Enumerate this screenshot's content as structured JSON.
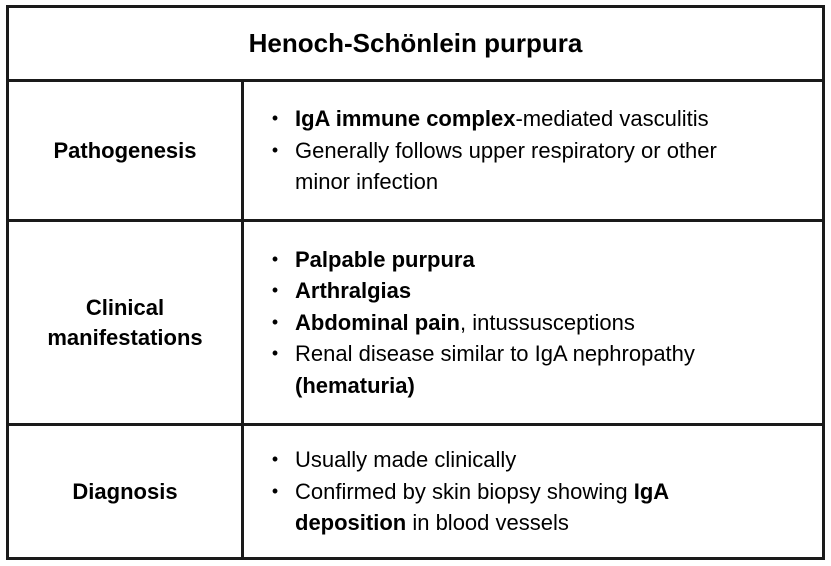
{
  "title": "Henoch-Schönlein purpura",
  "rows": [
    {
      "label": "Pathogenesis",
      "items": [
        {
          "segments": [
            {
              "text": "IgA immune complex",
              "bold": true
            },
            {
              "text": "-mediated vasculitis",
              "bold": false
            }
          ]
        },
        {
          "segments": [
            {
              "text": "Generally follows upper respiratory or other",
              "bold": false
            },
            {
              "br": true
            },
            {
              "text": "minor infection",
              "bold": false
            }
          ]
        }
      ]
    },
    {
      "label": "Clinical manifestations",
      "items": [
        {
          "segments": [
            {
              "text": "Palpable purpura",
              "bold": true
            }
          ]
        },
        {
          "segments": [
            {
              "text": "Arthralgias",
              "bold": true
            }
          ]
        },
        {
          "segments": [
            {
              "text": "Abdominal pain",
              "bold": true
            },
            {
              "text": ", intussusceptions",
              "bold": false
            }
          ]
        },
        {
          "segments": [
            {
              "text": "Renal disease similar to IgA nephropathy",
              "bold": false
            },
            {
              "br": true
            },
            {
              "text": "(hematuria)",
              "bold": true
            }
          ]
        }
      ]
    },
    {
      "label": "Diagnosis",
      "items": [
        {
          "segments": [
            {
              "text": "Usually made clinically",
              "bold": false
            }
          ]
        },
        {
          "segments": [
            {
              "text": "Confirmed by skin biopsy showing ",
              "bold": false
            },
            {
              "text": "IgA",
              "bold": true
            },
            {
              "br": true
            },
            {
              "text": "deposition",
              "bold": true
            },
            {
              "text": " in blood vessels",
              "bold": false
            }
          ]
        }
      ]
    }
  ],
  "bullet_glyph": "•",
  "colors": {
    "border": "#1a1a1a",
    "text": "#000000",
    "background": "#ffffff"
  }
}
